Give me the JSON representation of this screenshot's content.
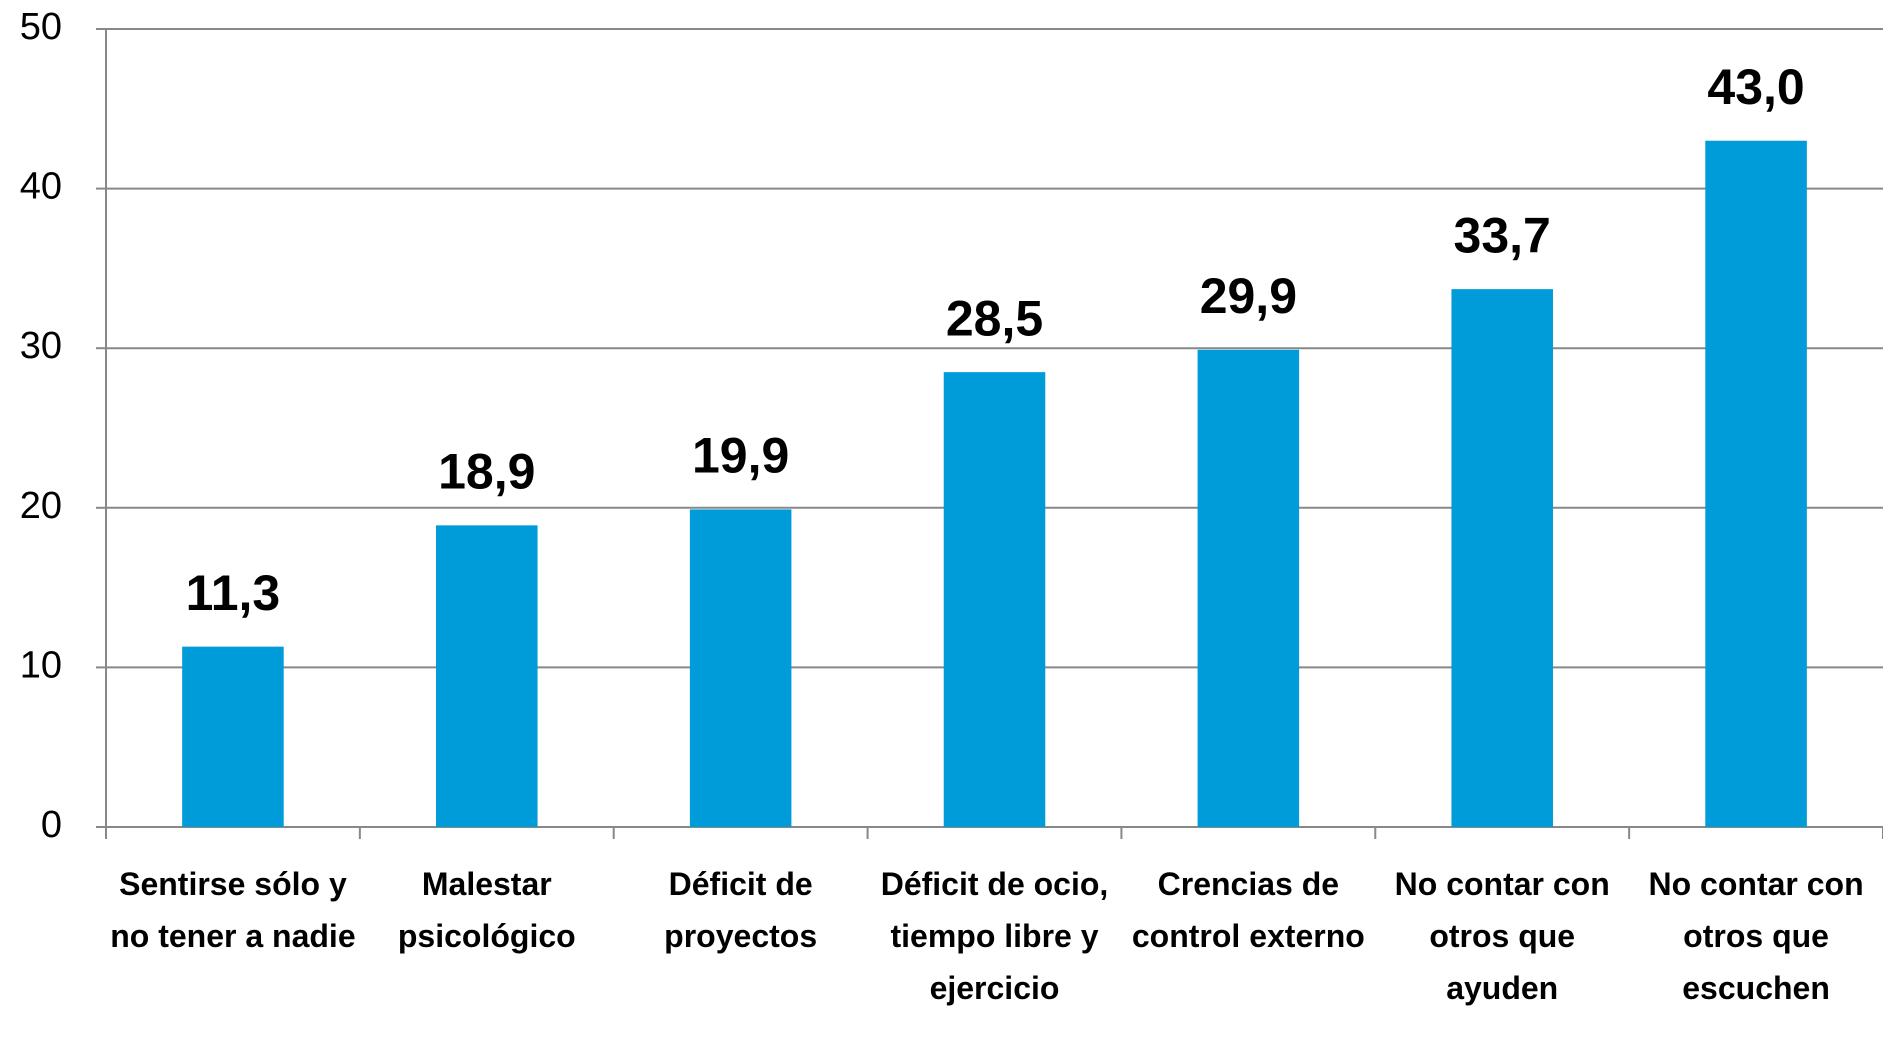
{
  "chart_data": {
    "type": "bar",
    "categories": [
      "Sentirse sólo y no tener a nadie",
      "Malestar psicológico",
      "Déficit de proyectos",
      "Déficit de ocio, tiempo libre y ejercicio",
      "Crencias de control externo",
      "No contar con otros que ayuden",
      "No contar con otros que escuchen"
    ],
    "values": [
      11.3,
      18.9,
      19.9,
      28.5,
      29.9,
      33.7,
      43.0
    ],
    "value_labels": [
      "11,3",
      "18,9",
      "19,9",
      "28,5",
      "29,9",
      "33,7",
      "43,0"
    ],
    "color": "#009bd9",
    "ylim": [
      0,
      50
    ],
    "yticks": [
      0,
      10,
      20,
      30,
      40,
      50
    ],
    "grid": true
  }
}
